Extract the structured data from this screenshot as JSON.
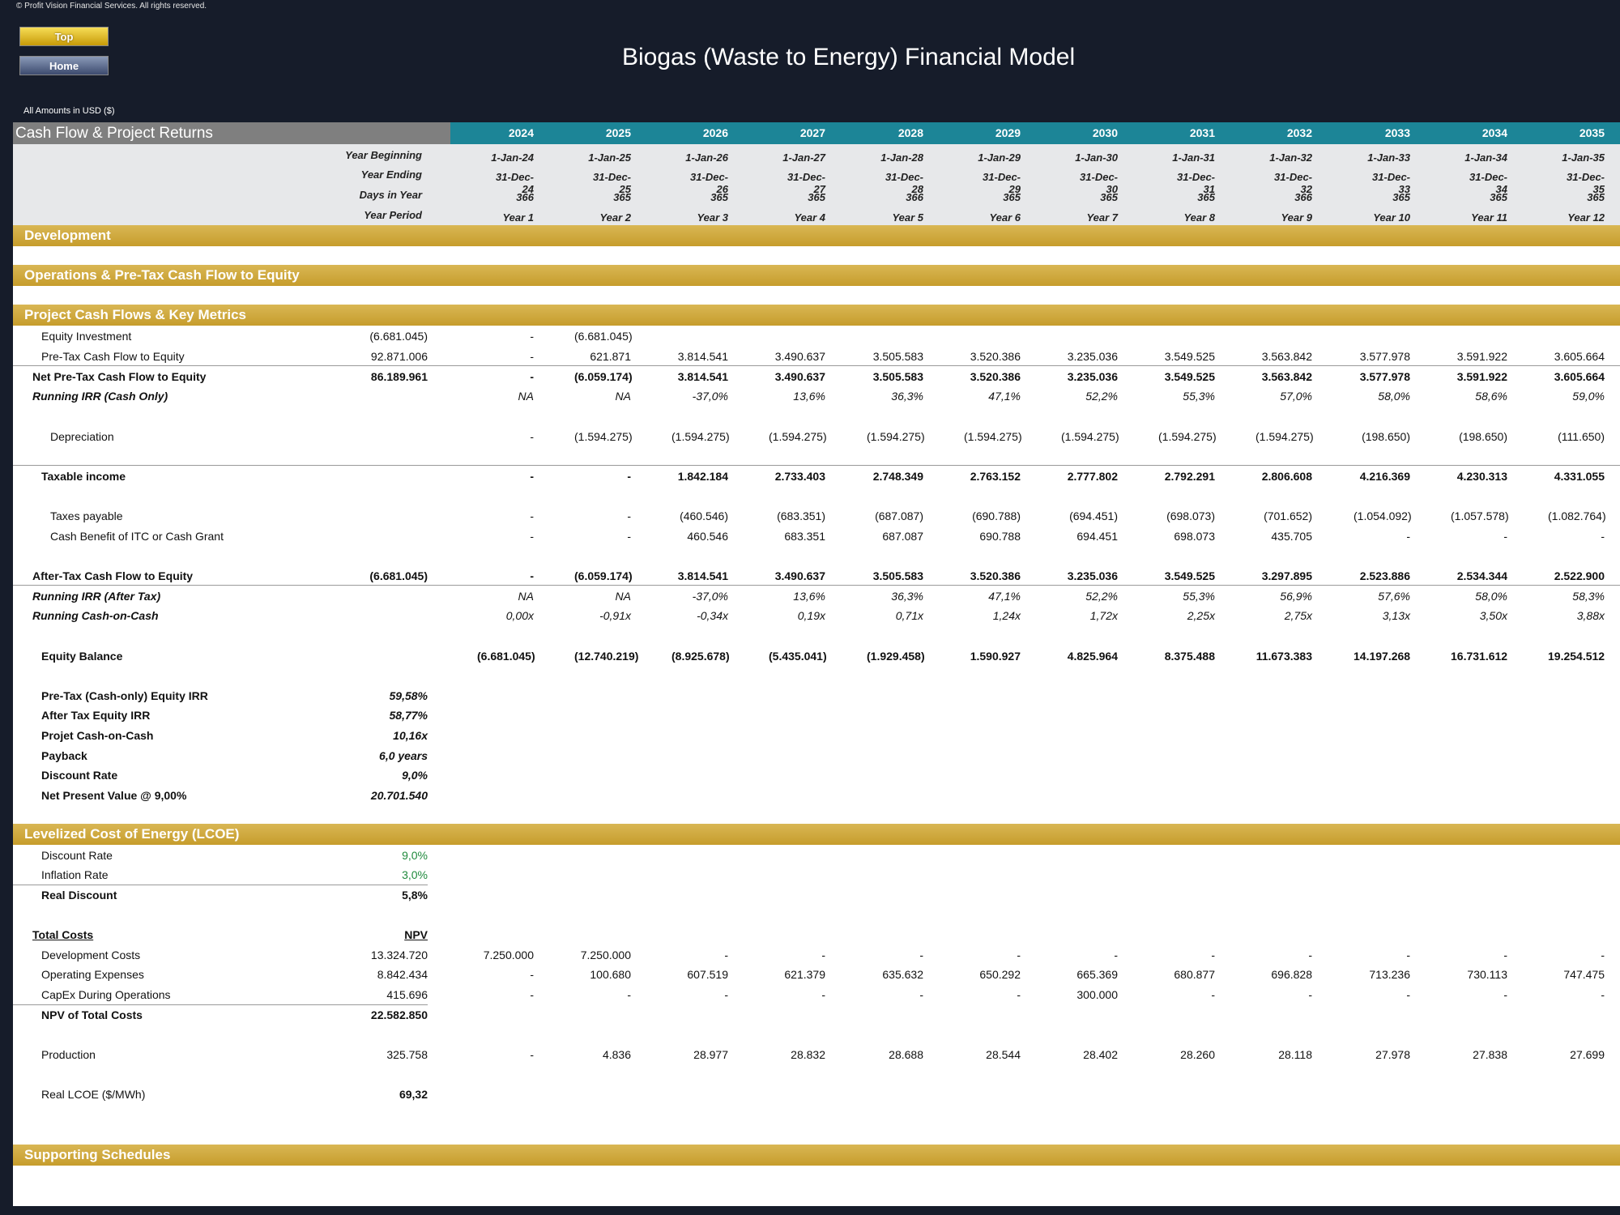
{
  "app": {
    "copyright": "© Profit Vision Financial Services. All rights reserved.",
    "title": "Biogas (Waste to Energy) Financial Model",
    "amounts_note": "All Amounts in  USD ($)"
  },
  "buttons": {
    "top": "Top",
    "home": "Home"
  },
  "section_header": "Cash Flow & Project Returns",
  "years": [
    "2024",
    "2025",
    "2026",
    "2027",
    "2028",
    "2029",
    "2030",
    "2031",
    "2032",
    "2033",
    "2034",
    "2035"
  ],
  "header_rows": [
    {
      "label": "Year Beginning",
      "values": [
        "1-Jan-24",
        "1-Jan-25",
        "1-Jan-26",
        "1-Jan-27",
        "1-Jan-28",
        "1-Jan-29",
        "1-Jan-30",
        "1-Jan-31",
        "1-Jan-32",
        "1-Jan-33",
        "1-Jan-34",
        "1-Jan-35"
      ]
    },
    {
      "label": "Year Ending",
      "values": [
        "31-Dec-24",
        "31-Dec-25",
        "31-Dec-26",
        "31-Dec-27",
        "31-Dec-28",
        "31-Dec-29",
        "31-Dec-30",
        "31-Dec-31",
        "31-Dec-32",
        "31-Dec-33",
        "31-Dec-34",
        "31-Dec-35"
      ]
    },
    {
      "label": "Days in Year",
      "values": [
        "366",
        "365",
        "365",
        "365",
        "366",
        "365",
        "365",
        "365",
        "366",
        "365",
        "365",
        "365"
      ]
    },
    {
      "label": "Year Period",
      "values": [
        "Year 1",
        "Year 2",
        "Year 3",
        "Year 4",
        "Year 5",
        "Year 6",
        "Year 7",
        "Year 8",
        "Year 9",
        "Year 10",
        "Year 11",
        "Year 12"
      ]
    }
  ],
  "bands": {
    "development": "Development",
    "operations": "Operations & Pre-Tax Cash Flow to Equity",
    "project": "Project Cash Flows & Key Metrics",
    "lcoe": "Levelized Cost of Energy (LCOE)",
    "supporting": "Supporting Schedules"
  },
  "rows": [
    {
      "label": "Equity Investment",
      "total": "(6.681.045)",
      "values": [
        "-",
        "(6.681.045)",
        "",
        "",
        "",
        "",
        "",
        "",
        "",
        "",
        "",
        ""
      ]
    },
    {
      "label": "Pre-Tax Cash Flow to Equity",
      "total": "92.871.006",
      "values": [
        "-",
        "621.871",
        "3.814.541",
        "3.490.637",
        "3.505.583",
        "3.520.386",
        "3.235.036",
        "3.549.525",
        "3.563.842",
        "3.577.978",
        "3.591.922",
        "3.605.664"
      ]
    },
    {
      "label": "Net Pre-Tax Cash Flow to Equity",
      "total": "86.189.961",
      "values": [
        "-",
        "(6.059.174)",
        "3.814.541",
        "3.490.637",
        "3.505.583",
        "3.520.386",
        "3.235.036",
        "3.549.525",
        "3.563.842",
        "3.577.978",
        "3.591.922",
        "3.605.664"
      ]
    },
    {
      "label": "Running IRR (Cash Only)",
      "total": "",
      "values": [
        "NA",
        "NA",
        "-37,0%",
        "13,6%",
        "36,3%",
        "47,1%",
        "52,2%",
        "55,3%",
        "57,0%",
        "58,0%",
        "58,6%",
        "59,0%"
      ]
    },
    {
      "label": "Depreciation",
      "total": "",
      "values": [
        "-",
        "(1.594.275)",
        "(1.594.275)",
        "(1.594.275)",
        "(1.594.275)",
        "(1.594.275)",
        "(1.594.275)",
        "(1.594.275)",
        "(1.594.275)",
        "(198.650)",
        "(198.650)",
        "(111.650)"
      ]
    },
    {
      "label": "Taxable income",
      "total": "",
      "values": [
        "-",
        "-",
        "1.842.184",
        "2.733.403",
        "2.748.349",
        "2.763.152",
        "2.777.802",
        "2.792.291",
        "2.806.608",
        "4.216.369",
        "4.230.313",
        "4.331.055"
      ]
    },
    {
      "label": "Taxes payable",
      "total": "",
      "values": [
        "-",
        "-",
        "(460.546)",
        "(683.351)",
        "(687.087)",
        "(690.788)",
        "(694.451)",
        "(698.073)",
        "(701.652)",
        "(1.054.092)",
        "(1.057.578)",
        "(1.082.764)"
      ]
    },
    {
      "label": "Cash Benefit of ITC or Cash Grant",
      "total": "",
      "values": [
        "-",
        "-",
        "460.546",
        "683.351",
        "687.087",
        "690.788",
        "694.451",
        "698.073",
        "435.705",
        "-",
        "-",
        "-"
      ]
    },
    {
      "label": "After-Tax Cash Flow to Equity",
      "total": "(6.681.045)",
      "values": [
        "-",
        "(6.059.174)",
        "3.814.541",
        "3.490.637",
        "3.505.583",
        "3.520.386",
        "3.235.036",
        "3.549.525",
        "3.297.895",
        "2.523.886",
        "2.534.344",
        "2.522.900"
      ]
    },
    {
      "label": "Running IRR (After Tax)",
      "total": "",
      "values": [
        "NA",
        "NA",
        "-37,0%",
        "13,6%",
        "36,3%",
        "47,1%",
        "52,2%",
        "55,3%",
        "56,9%",
        "57,6%",
        "58,0%",
        "58,3%"
      ]
    },
    {
      "label": "Running Cash-on-Cash",
      "total": "",
      "values": [
        "0,00x",
        "-0,91x",
        "-0,34x",
        "0,19x",
        "0,71x",
        "1,24x",
        "1,72x",
        "2,25x",
        "2,75x",
        "3,13x",
        "3,50x",
        "3,88x"
      ]
    },
    {
      "label": "Equity Balance",
      "total": "",
      "values": [
        "(6.681.045)",
        "(12.740.219)",
        "(8.925.678)",
        "(5.435.041)",
        "(1.929.458)",
        "1.590.927",
        "4.825.964",
        "8.375.488",
        "11.673.383",
        "14.197.268",
        "16.731.612",
        "19.254.512"
      ]
    },
    {
      "label": "Pre-Tax (Cash-only) Equity IRR",
      "total": "59,58%",
      "values": []
    },
    {
      "label": "After Tax Equity IRR",
      "total": "58,77%",
      "values": []
    },
    {
      "label": "Projet Cash-on-Cash",
      "total": "10,16x",
      "values": []
    },
    {
      "label": "Payback",
      "total": "6,0 years",
      "values": []
    },
    {
      "label": "Discount Rate",
      "total": "9,0%",
      "values": []
    },
    {
      "label": "Net Present Value @ 9,00%",
      "total": "20.701.540",
      "values": []
    },
    {
      "label": "Discount Rate",
      "total": "9,0%",
      "values": []
    },
    {
      "label": "Inflation Rate",
      "total": "3,0%",
      "values": []
    },
    {
      "label": "Real Discount",
      "total": "5,8%",
      "values": []
    },
    {
      "label": "Total Costs",
      "total": "NPV",
      "values": []
    },
    {
      "label": "Development Costs",
      "total": "13.324.720",
      "values": [
        "7.250.000",
        "7.250.000",
        "-",
        "-",
        "-",
        "-",
        "-",
        "-",
        "-",
        "-",
        "-",
        "-"
      ]
    },
    {
      "label": "Operating Expenses",
      "total": "8.842.434",
      "values": [
        "-",
        "100.680",
        "607.519",
        "621.379",
        "635.632",
        "650.292",
        "665.369",
        "680.877",
        "696.828",
        "713.236",
        "730.113",
        "747.475"
      ]
    },
    {
      "label": "CapEx During Operations",
      "total": "415.696",
      "values": [
        "-",
        "-",
        "-",
        "-",
        "-",
        "-",
        "300.000",
        "-",
        "-",
        "-",
        "-",
        "-"
      ]
    },
    {
      "label": "NPV of Total Costs",
      "total": "22.582.850",
      "values": []
    },
    {
      "label": "Production",
      "total": "325.758",
      "values": [
        "-",
        "4.836",
        "28.977",
        "28.832",
        "28.688",
        "28.544",
        "28.402",
        "28.260",
        "28.118",
        "27.978",
        "27.838",
        "27.699"
      ]
    },
    {
      "label": "Real LCOE  ($/MWh)",
      "total": "69,32",
      "values": []
    }
  ]
}
